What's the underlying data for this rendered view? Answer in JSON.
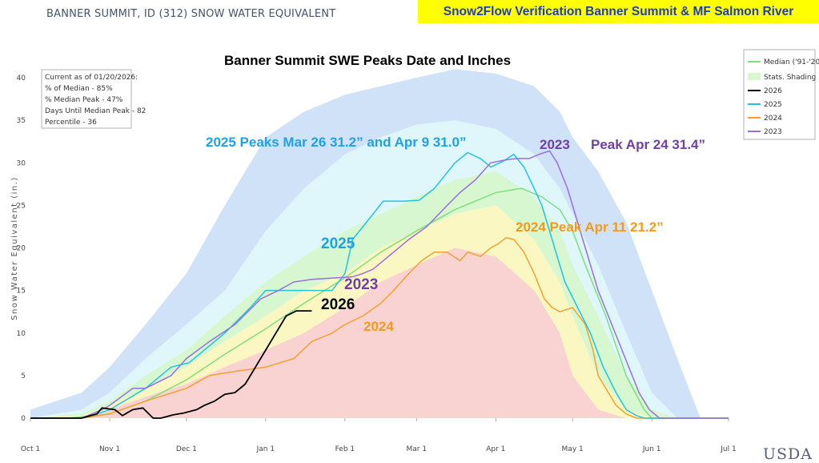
{
  "header": {
    "station_title": "BANNER SUMMIT, ID (312) SNOW WATER EQUIVALENT",
    "banner": "Snow2Flow Verification Banner Summit & MF Salmon River",
    "logo": "USDA"
  },
  "colors": {
    "median": "#7de07d",
    "y2026": "#000000",
    "y2025": "#22c4e0",
    "y2024": "#f5a030",
    "y2023": "#9a6ee0",
    "band_outer": "#d0e2f7",
    "band_upper": "#dff7fb",
    "band_mid": "#d7f7d0",
    "band_lower": "#fbf7c2",
    "band_min": "#f9d2d2",
    "annot_2025": "#1ea1e8",
    "annot_2023": "#7040a8",
    "annot_2024": "#f29a1c"
  },
  "info_box": [
    "Current as of 01/20/2026:",
    "% of Median - 85%",
    "% Median Peak - 47%",
    "Days Until Median Peak - 82",
    "Percentile - 36"
  ],
  "chart_data": {
    "type": "line",
    "title": "Banner Summit SWE Peaks Date and Inches",
    "ylabel": "Snow Water Equivalent (in.)",
    "xlabel": "",
    "xlim": [
      "Oct 1",
      "Jul 1"
    ],
    "ylim": [
      0,
      42
    ],
    "x_ticks": [
      "Oct 1",
      "Nov 1",
      "Dec 1",
      "Jan 1",
      "Feb 1",
      "Mar 1",
      "Apr 1",
      "May 1",
      "Jun 1",
      "Jul 1"
    ],
    "x_tick_days": [
      0,
      31,
      61,
      92,
      123,
      151,
      182,
      212,
      243,
      273
    ],
    "y_ticks": [
      0,
      5,
      10,
      15,
      20,
      25,
      30,
      35,
      40
    ],
    "grid": false,
    "legend_position": "right",
    "legend": [
      "Median ('91-'20)",
      "Stats. Shading",
      "2026",
      "2025",
      "2024",
      "2023"
    ],
    "bands": {
      "x": [
        0,
        20,
        31,
        45,
        61,
        76,
        92,
        107,
        123,
        137,
        151,
        166,
        182,
        197,
        207,
        212,
        222,
        233,
        243,
        253,
        262,
        273
      ],
      "max": [
        1,
        3,
        6,
        11,
        17,
        25,
        33,
        36,
        38,
        39,
        40,
        41,
        40.5,
        39,
        36,
        33,
        29,
        23,
        15,
        7,
        0,
        0
      ],
      "p90": [
        0,
        1,
        3,
        7,
        11,
        15,
        22,
        27,
        31,
        33,
        34.5,
        35,
        34,
        31,
        27,
        24,
        18,
        10,
        3,
        0,
        0,
        0
      ],
      "p70": [
        0,
        0.5,
        2,
        5,
        8,
        12,
        16,
        19,
        22,
        24,
        26,
        28,
        29,
        26,
        22,
        18,
        12,
        5,
        1,
        0,
        0,
        0
      ],
      "p50": [
        0,
        0.3,
        1.5,
        3.5,
        6,
        9,
        12,
        15,
        17,
        20,
        22,
        24,
        25,
        21,
        16,
        12,
        5,
        1,
        0,
        0,
        0,
        0
      ],
      "p30": [
        0,
        0,
        1,
        2.5,
        4,
        6,
        8,
        10,
        13,
        16,
        18,
        20,
        19,
        15,
        10,
        5,
        1,
        0,
        0,
        0,
        0,
        0
      ],
      "p10": [
        0,
        0,
        0.3,
        1.5,
        2.5,
        4,
        6,
        8,
        10,
        13,
        15,
        16,
        15,
        11,
        5,
        0,
        0,
        0,
        0,
        0,
        0,
        0
      ]
    },
    "series": [
      {
        "name": "Median ('91-'20)",
        "x": [
          0,
          15,
          31,
          45,
          61,
          76,
          92,
          107,
          123,
          137,
          151,
          166,
          182,
          192,
          200,
          207,
          212,
          217,
          225,
          233,
          240,
          243,
          250,
          273
        ],
        "values": [
          0,
          0,
          0.5,
          2,
          4.5,
          7.5,
          10.5,
          13.5,
          16.5,
          19.5,
          22,
          24.5,
          26.5,
          27,
          26,
          24.5,
          22,
          18,
          12,
          5,
          1,
          0,
          0,
          0
        ]
      },
      {
        "name": "2026",
        "x": [
          0,
          20,
          26,
          28,
          33,
          36,
          40,
          44,
          48,
          51,
          56,
          60,
          65,
          68,
          72,
          76,
          80,
          84,
          88,
          92,
          96,
          100,
          104,
          106,
          110
        ],
        "values": [
          0,
          0,
          0.5,
          1.2,
          1,
          0.3,
          1,
          1.2,
          0,
          0,
          0.4,
          0.6,
          1,
          1.5,
          2,
          2.8,
          3,
          4,
          6,
          8,
          10,
          12,
          12.6,
          12.6,
          12.6
        ]
      },
      {
        "name": "2025",
        "x": [
          0,
          20,
          26,
          31,
          45,
          55,
          62,
          76,
          86,
          92,
          97,
          108,
          118,
          123,
          126,
          138,
          146,
          152,
          158,
          166,
          171,
          176,
          180,
          185,
          189,
          193,
          197,
          200,
          205,
          209,
          214,
          219,
          224,
          229,
          233,
          237,
          240,
          250,
          273
        ],
        "values": [
          0,
          0,
          0.5,
          1,
          3.5,
          6,
          6.5,
          10,
          13,
          15,
          15,
          15,
          15,
          17,
          21,
          25.5,
          25.5,
          25.6,
          27,
          30,
          31.2,
          30.5,
          29.5,
          30.2,
          31,
          29.5,
          27,
          25,
          20,
          16,
          13,
          10,
          6,
          3,
          1,
          0.3,
          0,
          0,
          0
        ]
      },
      {
        "name": "2024",
        "x": [
          0,
          20,
          31,
          45,
          61,
          70,
          80,
          92,
          103,
          110,
          118,
          123,
          130,
          137,
          142,
          148,
          153,
          158,
          163,
          168,
          171,
          176,
          180,
          183,
          186,
          189,
          193,
          197,
          201,
          204,
          207,
          212,
          217,
          220,
          222,
          226,
          229,
          233,
          237,
          240,
          250,
          273
        ],
        "values": [
          0,
          0,
          0.5,
          2,
          3.5,
          5,
          5.5,
          6,
          7,
          9,
          10,
          11,
          12,
          13.5,
          15,
          17,
          18.5,
          19.5,
          19.5,
          18.5,
          19.5,
          19,
          20,
          20.5,
          21.2,
          21,
          19.5,
          17,
          14,
          13,
          12.5,
          13,
          11,
          8,
          5,
          3,
          1.5,
          0.5,
          0,
          0,
          0,
          0
        ]
      },
      {
        "name": "2023",
        "x": [
          0,
          20,
          28,
          31,
          40,
          45,
          55,
          61,
          70,
          80,
          90,
          97,
          103,
          110,
          120,
          126,
          130,
          134,
          138,
          142,
          148,
          155,
          163,
          168,
          174,
          180,
          185,
          190,
          195,
          199,
          203,
          206,
          210,
          214,
          218,
          222,
          226,
          230,
          234,
          238,
          242,
          246,
          273
        ],
        "values": [
          0,
          0,
          1,
          1.5,
          3.5,
          3.5,
          5,
          7,
          9,
          11,
          14,
          15,
          16,
          16.3,
          16.5,
          16.6,
          17,
          17.5,
          18.5,
          19.5,
          21,
          22.5,
          25,
          26.5,
          28,
          30,
          30.3,
          30.5,
          30.5,
          31,
          31.4,
          30,
          27,
          23,
          19,
          15,
          12,
          9,
          6,
          3,
          1,
          0,
          0
        ]
      }
    ],
    "annotations": [
      {
        "text": "2025  Peaks Mar 26 31.2” and Apr 9 31.0”",
        "color_key": "annot_2025"
      },
      {
        "text": "2023",
        "color_key": "annot_2023"
      },
      {
        "text": "Peak Apr 24 31.4”",
        "color_key": "annot_2023"
      },
      {
        "text": "2024  Peak Apr 11 21.2”",
        "color_key": "annot_2024"
      },
      {
        "text": "2025",
        "color_key": "annot_2025"
      },
      {
        "text": "2023",
        "color_key": "annot_2023"
      },
      {
        "text": "2026",
        "color_key": "y2026"
      },
      {
        "text": "2024",
        "color_key": "annot_2024"
      }
    ]
  }
}
